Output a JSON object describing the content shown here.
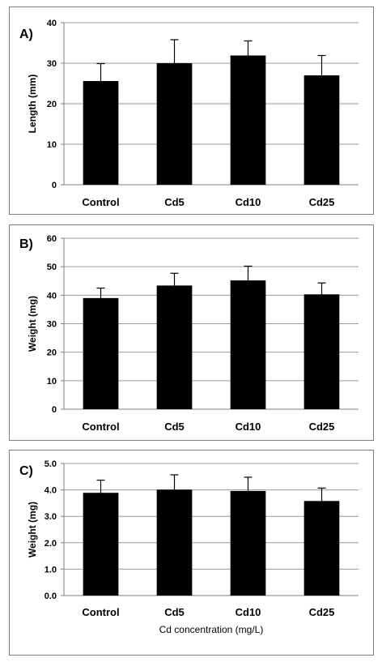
{
  "chart_data": [
    {
      "type": "bar",
      "panel_label": "A)",
      "categories": [
        "Control",
        "Cd5",
        "Cd10",
        "Cd25"
      ],
      "values": [
        25.6,
        30.0,
        31.9,
        27.0
      ],
      "errors": [
        4.3,
        5.8,
        3.6,
        4.9
      ],
      "ylabel": "Length (mm)",
      "xlabel": "",
      "ylim": [
        0,
        40
      ],
      "yticks": [
        "0",
        "10",
        "20",
        "30",
        "40"
      ],
      "grid": true,
      "bar_color": "#000000"
    },
    {
      "type": "bar",
      "panel_label": "B)",
      "categories": [
        "Control",
        "Cd5",
        "Cd10",
        "Cd25"
      ],
      "values": [
        39.0,
        43.4,
        45.2,
        40.3
      ],
      "errors": [
        3.5,
        4.3,
        5.0,
        4.0
      ],
      "ylabel": "Weight (mg)",
      "xlabel": "",
      "ylim": [
        0,
        60
      ],
      "yticks": [
        "0",
        "10",
        "20",
        "30",
        "40",
        "50",
        "60"
      ],
      "grid": true,
      "bar_color": "#000000"
    },
    {
      "type": "bar",
      "panel_label": "C)",
      "categories": [
        "Control",
        "Cd5",
        "Cd10",
        "Cd25"
      ],
      "values": [
        3.89,
        4.01,
        3.96,
        3.58
      ],
      "errors": [
        0.48,
        0.56,
        0.52,
        0.49
      ],
      "ylabel": "Weight (mg)",
      "xlabel": "Cd concentration (mg/L)",
      "ylim": [
        0,
        5
      ],
      "yticks": [
        "0.0",
        "1.0",
        "2.0",
        "3.0",
        "4.0",
        "5.0"
      ],
      "grid": true,
      "bar_color": "#000000"
    }
  ]
}
